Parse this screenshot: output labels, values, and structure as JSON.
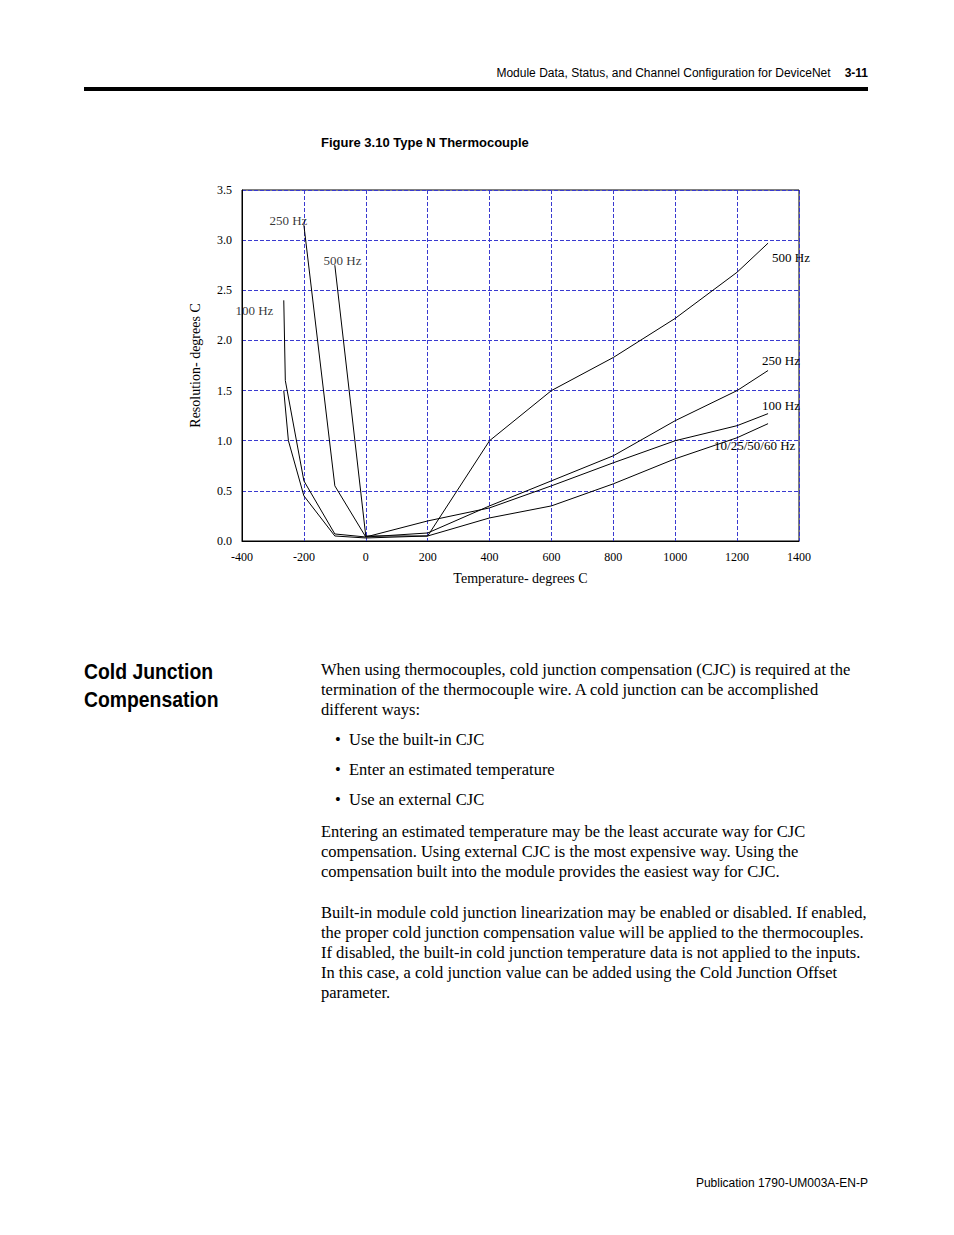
{
  "header": {
    "title": "Module Data, Status, and Channel Configuration for DeviceNet",
    "page": "3-11"
  },
  "figure_caption": "Figure 3.10 Type N Thermocouple",
  "chart_data": {
    "type": "line",
    "x_label": "Temperature- degrees C",
    "y_label": "Resolution- degrees C",
    "xlim": [
      -400,
      1400
    ],
    "xticks": [
      -400,
      -200,
      0,
      200,
      400,
      600,
      800,
      1000,
      1200,
      1400
    ],
    "ylim": [
      0,
      3.5
    ],
    "yticks": [
      {
        "value": 0,
        "label": "0.0"
      },
      0.5,
      {
        "value": 1,
        "label": "1.0"
      },
      1.5,
      {
        "value": 2,
        "label": "2.0"
      },
      2.5,
      {
        "value": 3,
        "label": "3.0"
      },
      3.5
    ],
    "grid": true,
    "series": [
      {
        "name": "500 Hz",
        "color": "#000000",
        "x": [
          -100,
          0,
          200,
          400,
          600,
          800,
          1000,
          1200,
          1300
        ],
        "values": [
          2.75,
          0.05,
          0.05,
          1.0,
          1.5,
          1.83,
          2.22,
          2.68,
          2.97
        ]
      },
      {
        "name": "250 Hz",
        "color": "#000000",
        "x": [
          -200,
          -100,
          0,
          200,
          400,
          600,
          800,
          1000,
          1200,
          1300
        ],
        "values": [
          3.15,
          0.55,
          0.04,
          0.08,
          0.35,
          0.6,
          0.85,
          1.2,
          1.5,
          1.7
        ]
      },
      {
        "name": "100 Hz",
        "color": "#000000",
        "x": [
          -265,
          -260,
          -200,
          -100,
          0,
          200,
          400,
          600,
          800,
          1000,
          1200,
          1300
        ],
        "values": [
          2.4,
          1.6,
          0.6,
          0.07,
          0.04,
          0.2,
          0.33,
          0.55,
          0.78,
          1.0,
          1.15,
          1.27
        ]
      },
      {
        "name": "10/25/50/60 Hz",
        "color": "#000000",
        "x": [
          -265,
          -250,
          -200,
          -100,
          0,
          200,
          400,
          600,
          800,
          1000,
          1200,
          1300
        ],
        "values": [
          1.5,
          1.0,
          0.45,
          0.05,
          0.03,
          0.05,
          0.23,
          0.35,
          0.57,
          0.82,
          1.03,
          1.17
        ]
      }
    ],
    "annotations": [
      {
        "text": "250 Hz",
        "x": -250,
        "y": 3.2
      },
      {
        "text": "500 Hz",
        "x": -75,
        "y": 2.8
      },
      {
        "text": "100 Hz",
        "x": -360,
        "y": 2.3
      }
    ]
  },
  "section": {
    "heading": "Cold Junction Compensation",
    "intro": "When using thermocouples, cold junction compensation (CJC) is required at the termination of the thermocouple wire.  A cold junction can be accomplished different ways:",
    "bullets": [
      "Use the built-in CJC",
      "Enter an estimated temperature",
      "Use an external CJC"
    ],
    "paragraphs": [
      "Entering an estimated temperature may be the least accurate way for CJC compensation.  Using external CJC is the most expensive way.  Using the compensation built into the module provides the easiest way for CJC.",
      "Built-in module cold junction linearization may be enabled or disabled.  If enabled, the proper cold junction compensation value will be applied to the thermocouples.  If disabled, the built-in cold junction temperature data is not applied to the inputs.  In this case, a cold junction value can be added using the Cold Junction Offset parameter."
    ]
  },
  "footer": "Publication 1790-UM003A-EN-P"
}
